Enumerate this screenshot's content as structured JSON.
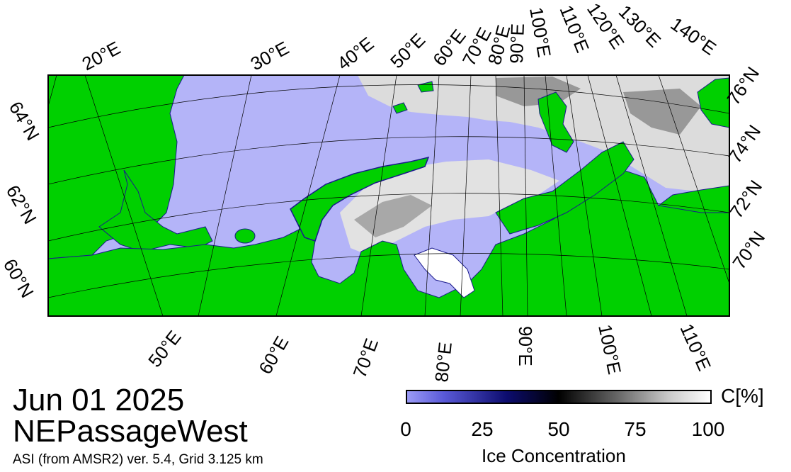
{
  "map": {
    "colors": {
      "ocean": "#b4b4f8",
      "land": "#00d000",
      "coast_ice_edge": "#1a1a8c",
      "land_noise": "#8a8a8a",
      "ice_light": "#e8e8e8",
      "ice_dark": "#505050"
    },
    "top_longitude_labels": [
      "20°E",
      "30°E",
      "40°E",
      "50°E",
      "60°E",
      "70°E",
      "80°E",
      "90°E",
      "100°E",
      "110°E",
      "120°E",
      "130°E",
      "140°E"
    ],
    "bottom_longitude_labels": [
      "50°E",
      "60°E",
      "70°E",
      "80°E",
      "90°E",
      "100°E",
      "110°E"
    ],
    "left_latitude_labels": [
      "64°N",
      "62°N",
      "60°N"
    ],
    "right_latitude_labels": [
      "76°N",
      "74°N",
      "72°N",
      "70°N"
    ]
  },
  "header": {
    "date": "Jun 01 2025",
    "region": "NEPassageWest",
    "source": "ASI (from AMSR2) ver. 5.4,  Grid 3.125 km"
  },
  "colorbar": {
    "unit": "C[%]",
    "ticks": [
      "0",
      "25",
      "50",
      "75",
      "100"
    ],
    "title": "Ice Concentration"
  }
}
